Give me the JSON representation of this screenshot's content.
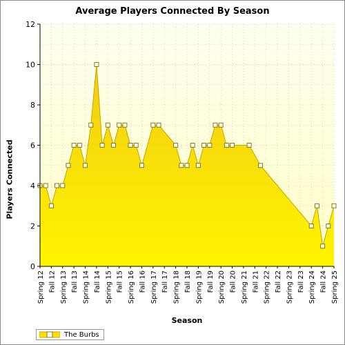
{
  "chart_data": {
    "type": "area",
    "title": "Average Players Connected By Season",
    "xlabel": "Season",
    "ylabel": "Players Connected",
    "ylim": [
      0,
      12
    ],
    "yticks": [
      0,
      2,
      4,
      6,
      8,
      10,
      12
    ],
    "grid": true,
    "legend_position": "bottom-left",
    "categories": [
      "Spring 12",
      "Summer 12",
      "Fall 12",
      "Winter 12",
      "Spring 13",
      "Summer 13",
      "Fall 13",
      "Winter 13",
      "Spring 14",
      "Summer 14",
      "Fall 14",
      "Winter 14",
      "Spring 15",
      "Summer 15",
      "Fall 15",
      "Winter 15",
      "Spring 16",
      "Summer 16",
      "Fall 16",
      "Winter 16",
      "Spring 17",
      "Summer 17",
      "Fall 17",
      "Winter 17",
      "Spring 18",
      "Summer 18",
      "Fall 18",
      "Winter 18",
      "Spring 19",
      "Summer 19",
      "Fall 19",
      "Winter 19",
      "Spring 20",
      "Summer 20",
      "Fall 20",
      "Winter 20",
      "Spring 21",
      "Summer 21",
      "Fall 21",
      "Winter 21",
      "Spring 22",
      "Summer 22",
      "Fall 22",
      "Winter 22",
      "Spring 23",
      "Summer 23",
      "Fall 23",
      "Winter 23",
      "Spring 24",
      "Summer 24",
      "Fall 24",
      "Winter 24",
      "Spring 25"
    ],
    "tick_labels": [
      "Spring 12",
      "Fall 12",
      "Spring 13",
      "Fall 13",
      "Spring 14",
      "Fall 14",
      "Spring 15",
      "Fall 15",
      "Spring 16",
      "Fall 16",
      "Spring 17",
      "Fall 17",
      "Spring 18",
      "Fall 18",
      "Spring 19",
      "Fall 19",
      "Spring 20",
      "Fall 20",
      "Spring 21",
      "Fall 21",
      "Spring 22",
      "Fall 22",
      "Spring 23",
      "Fall 23",
      "Spring 24",
      "Fall 24",
      "Spring 25"
    ],
    "series": [
      {
        "name": "The Burbs",
        "color": "#FFE000",
        "values": [
          4,
          4,
          3,
          4,
          4,
          5,
          6,
          6,
          5,
          7,
          10,
          6,
          7,
          6,
          7,
          7,
          6,
          6,
          5,
          null,
          7,
          7,
          null,
          null,
          6,
          5,
          5,
          6,
          5,
          6,
          6,
          7,
          7,
          6,
          6,
          null,
          null,
          6,
          null,
          5,
          null,
          null,
          null,
          null,
          null,
          null,
          null,
          null,
          2,
          3,
          1,
          2,
          3
        ]
      }
    ]
  },
  "legend": {
    "label": "The Burbs"
  }
}
